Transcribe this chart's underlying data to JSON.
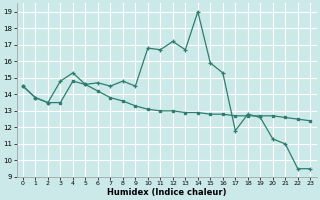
{
  "title": "",
  "xlabel": "Humidex (Indice chaleur)",
  "ylabel": "",
  "xlim": [
    -0.5,
    23.5
  ],
  "ylim": [
    9,
    19.5
  ],
  "yticks": [
    9,
    10,
    11,
    12,
    13,
    14,
    15,
    16,
    17,
    18,
    19
  ],
  "xticks": [
    0,
    1,
    2,
    3,
    4,
    5,
    6,
    7,
    8,
    9,
    10,
    11,
    12,
    13,
    14,
    15,
    16,
    17,
    18,
    19,
    20,
    21,
    22,
    23
  ],
  "bg_color": "#cce9e9",
  "grid_color": "#ffffff",
  "line_color": "#2e7d6e",
  "line1_x": [
    0,
    1,
    2,
    3,
    4,
    5,
    6,
    7,
    8,
    9,
    10,
    11,
    12,
    13,
    14,
    15,
    16,
    17,
    18,
    19,
    20,
    21,
    22,
    23
  ],
  "line1_y": [
    14.5,
    13.8,
    13.5,
    14.8,
    15.3,
    14.6,
    14.7,
    14.5,
    14.8,
    14.5,
    16.8,
    16.7,
    17.2,
    16.7,
    19.0,
    15.9,
    15.3,
    11.8,
    12.8,
    12.6,
    11.3,
    11.0,
    9.5,
    9.5
  ],
  "line2_x": [
    0,
    1,
    2,
    3,
    4,
    5,
    6,
    7,
    8,
    9,
    10,
    11,
    12,
    13,
    14,
    15,
    16,
    17,
    18,
    19,
    20,
    21,
    22,
    23
  ],
  "line2_y": [
    14.5,
    13.8,
    13.5,
    13.5,
    14.8,
    14.6,
    14.2,
    13.8,
    13.6,
    13.3,
    13.1,
    13.0,
    13.0,
    12.9,
    12.9,
    12.8,
    12.8,
    12.7,
    12.7,
    12.7,
    12.7,
    12.6,
    12.5,
    12.4
  ]
}
